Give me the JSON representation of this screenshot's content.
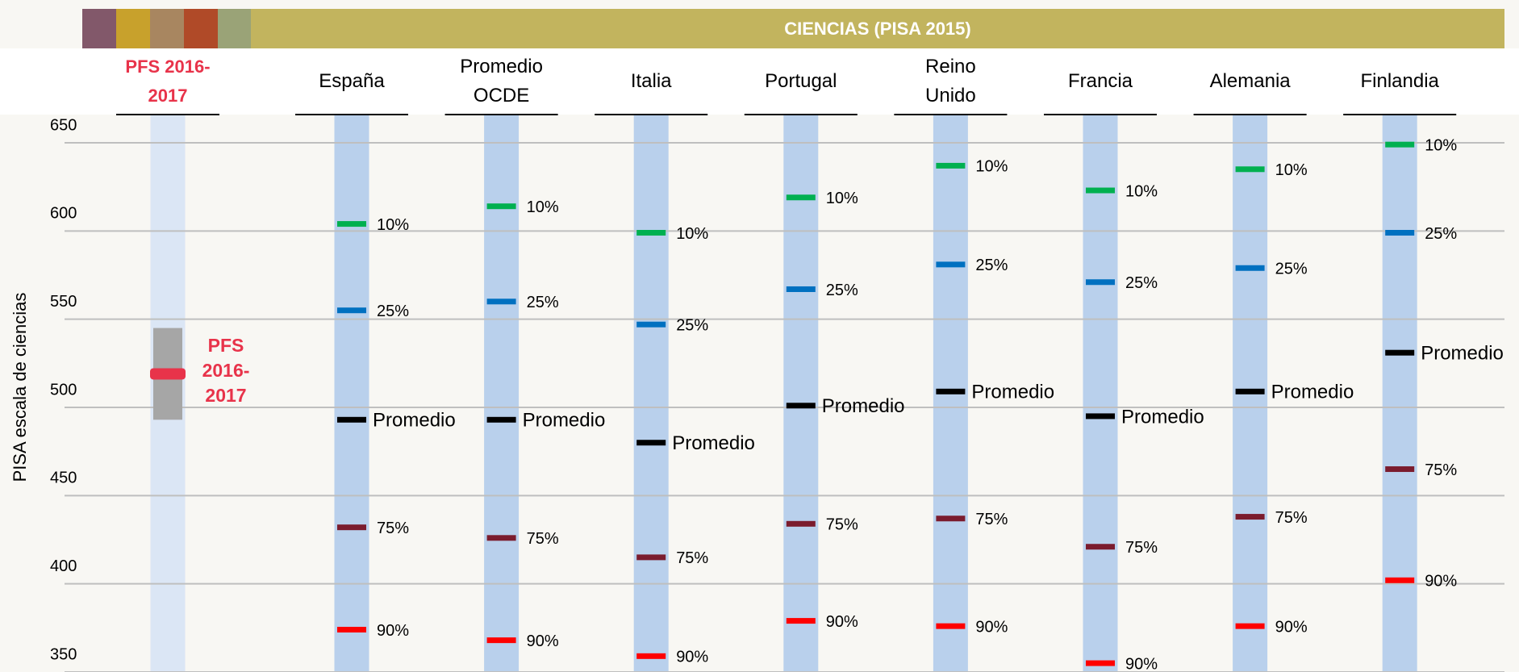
{
  "chart_data": {
    "type": "percentile-markers",
    "title": "CIENCIAS (PISA 2015)",
    "y_label": "PISA escala de ciencias",
    "ylim": [
      350,
      666
    ],
    "yticks": [
      350,
      400,
      450,
      500,
      550,
      600,
      650
    ],
    "grid": true,
    "categories": [
      "España",
      "Promedio OCDE",
      "Italia",
      "Portugal",
      "Reino Unido",
      "Francia",
      "Alemania",
      "Finlandia"
    ],
    "series": [
      {
        "name": "10%",
        "color": "#00b050",
        "values": [
          604,
          614,
          599,
          619,
          637,
          623,
          635,
          649
        ]
      },
      {
        "name": "25%",
        "color": "#0070c0",
        "values": [
          555,
          560,
          547,
          567,
          581,
          571,
          579,
          599
        ]
      },
      {
        "name": "Promedio",
        "color": "#000000",
        "values": [
          493,
          493,
          480,
          501,
          509,
          495,
          509,
          531
        ]
      },
      {
        "name": "75%",
        "color": "#7b1c2e",
        "values": [
          432,
          426,
          415,
          434,
          437,
          421,
          438,
          465
        ]
      },
      {
        "name": "90%",
        "color": "#ff0000",
        "values": [
          374,
          368,
          359,
          379,
          376,
          355,
          376,
          402
        ]
      }
    ],
    "pfs": {
      "label": "PFS 2016-2017",
      "mean": 519,
      "low": 493,
      "high": 545,
      "color": "#e8334a",
      "range_color": "#a6a6a6"
    }
  }
}
